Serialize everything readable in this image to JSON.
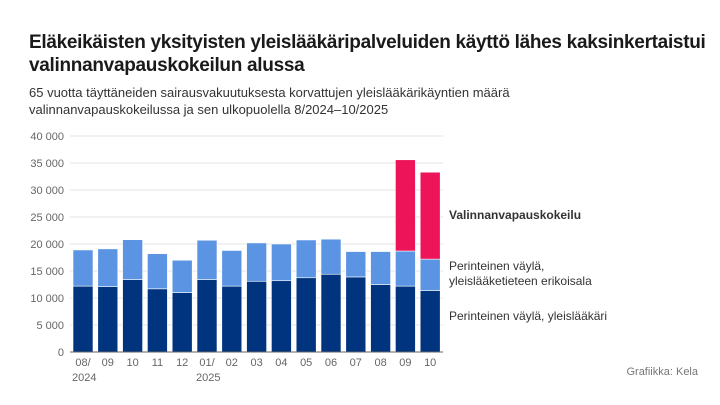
{
  "title": "Eläkeikäisten yksityisten yleislääkäripalveluiden käyttö lähes kaksinkertaistui valinnanvapauskokeilun alussa",
  "subtitle": "65 vuotta täyttäneiden sairausvakuutuksesta korvattujen yleislääkärikäyntien määrä valinnanvapauskokeilussa ja sen ulkopuolella 8/2024–10/2025",
  "credit": "Grafiikka: Kela",
  "chart_data": {
    "type": "bar",
    "stacked": true,
    "title": "Eläkeikäisten yksityisten yleislääkäripalveluiden käyttö lähes kaksinkertaistui valinnanvapauskokeilun alussa",
    "subtitle": "65 vuotta täyttäneiden sairausvakuutuksesta korvattujen yleislääkärikäyntien määrä valinnanvapauskokeilussa ja sen ulkopuolella 8/2024–10/2025",
    "categories": [
      "08/2024",
      "09",
      "10",
      "11",
      "12",
      "01/2025",
      "02",
      "03",
      "04",
      "05",
      "06",
      "07",
      "08",
      "09",
      "10"
    ],
    "x_tick_labels": [
      [
        "08/",
        "2024"
      ],
      [
        "09"
      ],
      [
        "10"
      ],
      [
        "11"
      ],
      [
        "12"
      ],
      [
        "01/",
        "2025"
      ],
      [
        "02"
      ],
      [
        "03"
      ],
      [
        "04"
      ],
      [
        "05"
      ],
      [
        "06"
      ],
      [
        "07"
      ],
      [
        "08"
      ],
      [
        "09"
      ],
      [
        "10"
      ]
    ],
    "ylim": [
      0,
      40000
    ],
    "y_ticks": [
      0,
      5000,
      10000,
      15000,
      20000,
      25000,
      30000,
      35000,
      40000
    ],
    "y_tick_labels": [
      "0",
      "5 000",
      "10 000",
      "15 000",
      "20 000",
      "25 000",
      "30 000",
      "35 000",
      "40 000"
    ],
    "grid": true,
    "legend_placement": "right",
    "series": [
      {
        "name": "Perinteinen väylä, yleislääkäri",
        "color": "#00347f",
        "values": [
          12200,
          12100,
          13400,
          11700,
          11000,
          13400,
          12200,
          13100,
          13200,
          13750,
          14400,
          13900,
          12500,
          12200,
          11400
        ]
      },
      {
        "name": "Perinteinen väylä, yleislääketieteen erikoisala",
        "color": "#5b94e2",
        "values": [
          6700,
          7000,
          7400,
          6500,
          6000,
          7300,
          6600,
          7100,
          6800,
          7000,
          6500,
          4700,
          6100,
          6500,
          5800
        ]
      },
      {
        "name": "Valinnanvapauskokeilu",
        "color": "#ee1459",
        "values": [
          0,
          0,
          0,
          0,
          0,
          0,
          0,
          0,
          0,
          0,
          0,
          0,
          0,
          16900,
          16100
        ]
      }
    ],
    "legend_lines": [
      [
        "Valinnanvapauskokeilu"
      ],
      [
        "Perinteinen väylä,",
        "yleislääketieteen erikoisala"
      ],
      [
        "Perinteinen väylä, yleislääkäri"
      ]
    ]
  }
}
